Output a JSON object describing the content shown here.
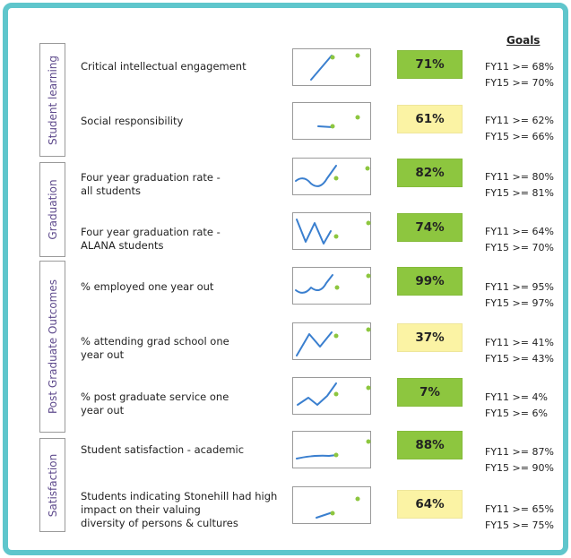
{
  "colors": {
    "frame": "#5fc6cc",
    "group_text": "#5e4a8c",
    "good": "#8dc63f",
    "warn": "#fbf3a4",
    "line": "#3a7fcf",
    "dot": "#8dc63f"
  },
  "goals_header": "Goals",
  "groups": [
    "Student learning",
    "Graduation",
    "Post Graduate Outcomes",
    "Satisfaction"
  ],
  "rows": [
    {
      "label": [
        "Critical intellectual engagement"
      ],
      "value": "71%",
      "status": "good",
      "goals": [
        "FY11 >= 68%",
        "FY15 >= 70%"
      ]
    },
    {
      "label": [
        "Social responsibility"
      ],
      "value": "61%",
      "status": "warn",
      "goals": [
        "FY11 >= 62%",
        "FY15 >= 66%"
      ]
    },
    {
      "label": [
        "Four year graduation rate -",
        "all students"
      ],
      "value": "82%",
      "status": "good",
      "goals": [
        "FY11 >= 80%",
        "FY15 >= 81%"
      ]
    },
    {
      "label": [
        "Four year graduation rate -",
        "ALANA students"
      ],
      "value": "74%",
      "status": "good",
      "goals": [
        "FY11 >= 64%",
        "FY15 >= 70%"
      ]
    },
    {
      "label": [
        "% employed one year out"
      ],
      "value": "99%",
      "status": "good",
      "goals": [
        "FY11 >= 95%",
        "FY15 >= 97%"
      ]
    },
    {
      "label": [
        "% attending grad school one",
        "year out"
      ],
      "value": "37%",
      "status": "warn",
      "goals": [
        "FY11 >= 41%",
        "FY15 >= 43%"
      ]
    },
    {
      "label": [
        "% post graduate service one",
        "year out"
      ],
      "value": "7%",
      "status": "good",
      "goals": [
        "FY11 >= 4%",
        "FY15 >= 6%"
      ]
    },
    {
      "label": [
        "Student satisfaction - academic"
      ],
      "value": "88%",
      "status": "good",
      "goals": [
        "FY11 >= 87%",
        "FY15 >= 90%"
      ]
    },
    {
      "label": [
        "Students indicating Stonehill had high",
        "impact on their valuing",
        "diversity of persons & cultures"
      ],
      "value": "64%",
      "status": "warn",
      "goals": [
        "FY11 >= 65%",
        "FY15 >= 75%"
      ]
    }
  ]
}
